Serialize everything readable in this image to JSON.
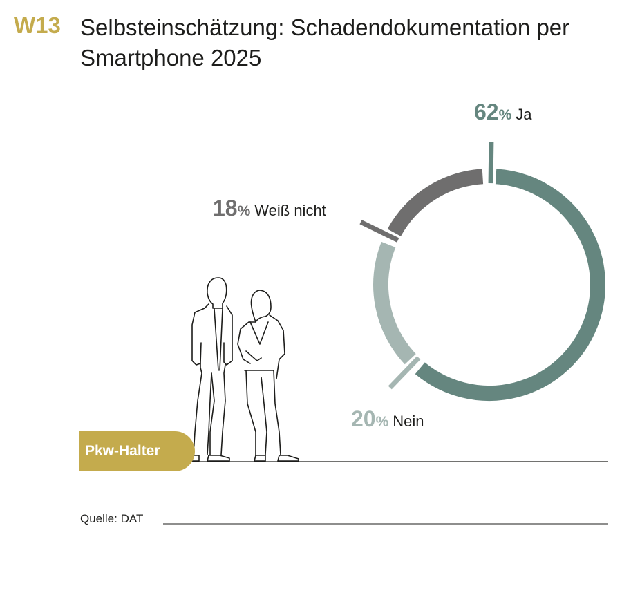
{
  "header": {
    "code": "W13",
    "title": "Selbsteinschätzung: Schadendokumentation per Smartphone 2025"
  },
  "badge": {
    "label": "Pkw-Halter"
  },
  "source": {
    "text": "Quelle: DAT"
  },
  "chart_data": {
    "type": "pie",
    "variant": "donut",
    "unit": "%",
    "slices": [
      {
        "label": "Ja",
        "value": 62,
        "value_text": "62",
        "color": "#65867f"
      },
      {
        "label": "Nein",
        "value": 20,
        "value_text": "20",
        "color": "#a5b6b2"
      },
      {
        "label": "Weiß nicht",
        "value": 18,
        "value_text": "18",
        "color": "#6f6e6e"
      }
    ],
    "start": "top",
    "direction": "clockwise",
    "legend": "none"
  }
}
